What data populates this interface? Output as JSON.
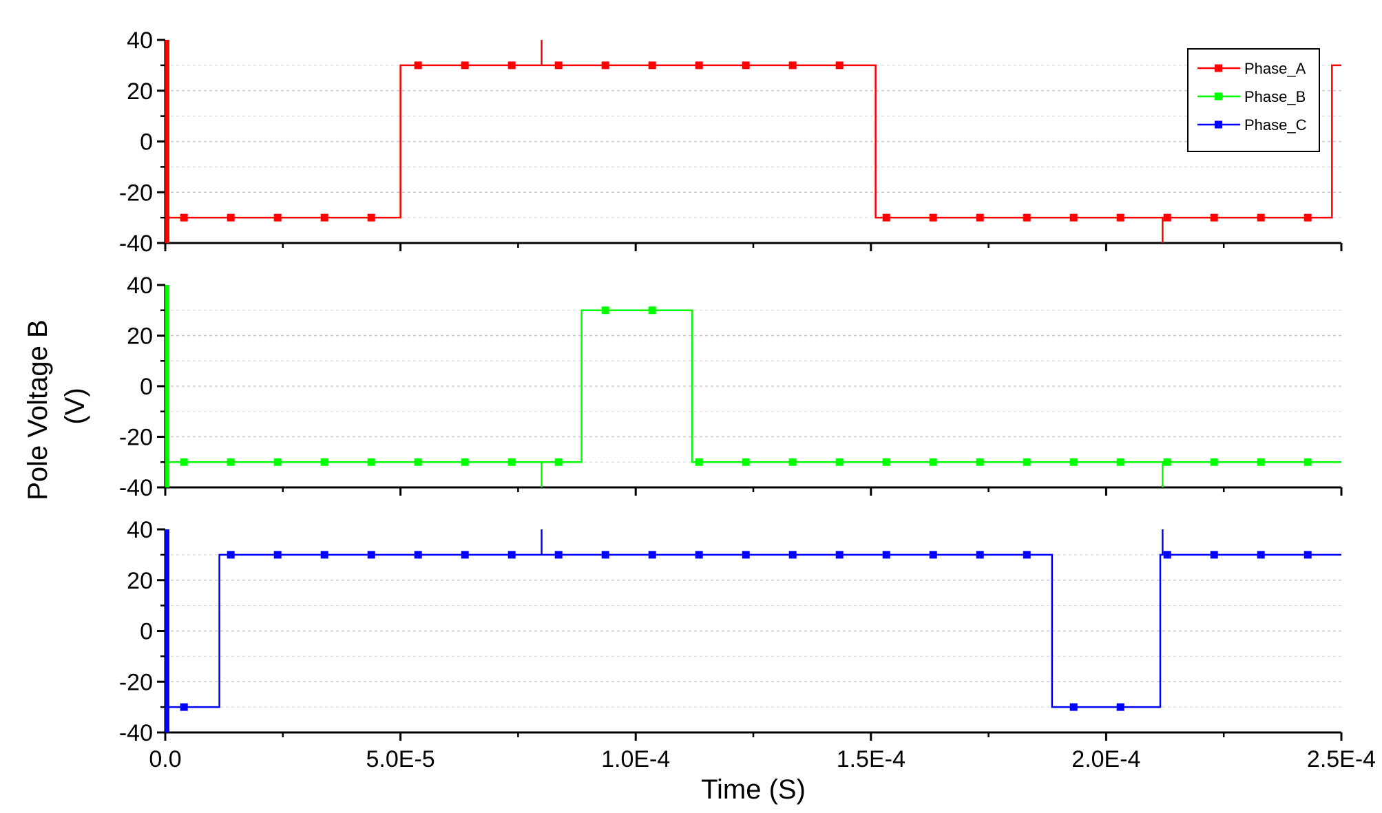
{
  "chart_data": {
    "type": "line",
    "title": "",
    "xlabel": "Time (S)",
    "ylabel_lines": [
      "Pole Voltage B",
      "(V)"
    ],
    "xlim": [
      0,
      0.00025
    ],
    "ylim": [
      -40,
      40
    ],
    "x_ticks": [
      0,
      5e-05,
      0.0001,
      0.00015,
      0.0002,
      0.00025
    ],
    "x_tick_labels": [
      "0.0",
      "5.0E-5",
      "1.0E-4",
      "1.5E-4",
      "2.0E-4",
      "2.5E-4"
    ],
    "y_ticks": [
      40,
      20,
      0,
      -20,
      -40
    ],
    "y_tick_labels": [
      "40",
      "20",
      "0",
      "-20",
      "-40"
    ],
    "grid": true,
    "legend_position": "top-right",
    "legend": [
      "Phase_A",
      "Phase_B",
      "Phase_C"
    ],
    "series": [
      {
        "name": "Phase_A",
        "color": "#ff0000",
        "points": [
          [
            0,
            -30
          ],
          [
            5e-05,
            -30
          ],
          [
            5e-05,
            30
          ],
          [
            0.000151,
            30
          ],
          [
            0.000151,
            -30
          ],
          [
            0.000248,
            -30
          ],
          [
            0.000248,
            30
          ],
          [
            0.00025,
            30
          ]
        ],
        "spikes": [
          [
            8e-05,
            30,
            40
          ],
          [
            0.000212,
            -30,
            -40
          ]
        ]
      },
      {
        "name": "Phase_B",
        "color": "#00ff00",
        "points": [
          [
            0,
            -30
          ],
          [
            8.85e-05,
            -30
          ],
          [
            8.85e-05,
            30
          ],
          [
            0.000112,
            30
          ],
          [
            0.000112,
            -30
          ],
          [
            0.00025,
            -30
          ]
        ],
        "spikes": [
          [
            8e-05,
            -30,
            -40
          ],
          [
            0.000212,
            -30,
            -40
          ]
        ]
      },
      {
        "name": "Phase_C",
        "color": "#0000ff",
        "points": [
          [
            0,
            -30
          ],
          [
            1.15e-05,
            -30
          ],
          [
            1.15e-05,
            30
          ],
          [
            0.0001885,
            30
          ],
          [
            0.0001885,
            -30
          ],
          [
            0.0002115,
            -30
          ],
          [
            0.0002115,
            30
          ],
          [
            0.00025,
            30
          ]
        ],
        "spikes": [
          [
            8e-05,
            30,
            40
          ],
          [
            0.000212,
            30,
            40
          ]
        ]
      }
    ]
  }
}
